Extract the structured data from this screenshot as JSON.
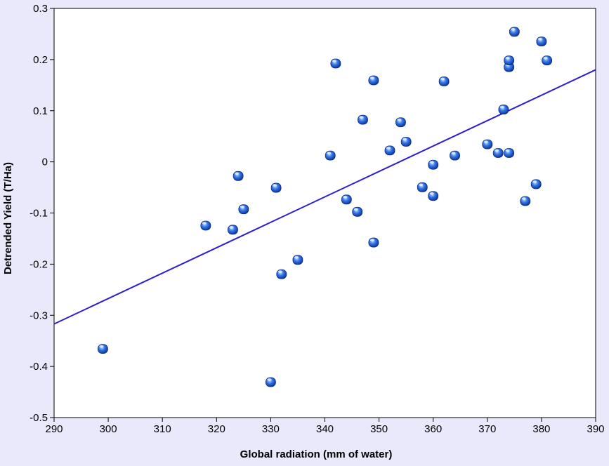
{
  "chart_data": {
    "type": "scatter",
    "title": "",
    "xlabel": "Global radiation (mm of water)",
    "ylabel": "Detrended Yield (T/Ha)",
    "xlim": [
      290,
      390
    ],
    "ylim": [
      -0.5,
      0.3
    ],
    "xticks": [
      290,
      300,
      310,
      320,
      330,
      340,
      350,
      360,
      370,
      380,
      390
    ],
    "yticks": [
      -0.5,
      -0.4,
      -0.3,
      -0.2,
      -0.1,
      0,
      0.1,
      0.2,
      0.3
    ],
    "xtick_labels": [
      "290",
      "300",
      "310",
      "320",
      "330",
      "340",
      "350",
      "360",
      "370",
      "380",
      "390"
    ],
    "ytick_labels": [
      "-0.5",
      "-0.4",
      "-0.3",
      "-0.2",
      "-0.1",
      "0",
      "0.1",
      "0.2",
      "0.3"
    ],
    "grid": false,
    "legend": "none",
    "colors": {
      "background": "#e9e9fb",
      "plot_area": "#ffffff",
      "marker": "#1f5fd6",
      "trendline": "#2b1fd0"
    },
    "series": [
      {
        "points": [
          [
            299,
            -0.365
          ],
          [
            318,
            -0.124
          ],
          [
            323,
            -0.132
          ],
          [
            324,
            -0.027
          ],
          [
            325,
            -0.092
          ],
          [
            330,
            -0.43
          ],
          [
            331,
            -0.05
          ],
          [
            332,
            -0.219
          ],
          [
            335,
            -0.191
          ],
          [
            341,
            0.013
          ],
          [
            342,
            0.193
          ],
          [
            344,
            -0.073
          ],
          [
            346,
            -0.097
          ],
          [
            347,
            0.083
          ],
          [
            349,
            0.16
          ],
          [
            349,
            -0.157
          ],
          [
            352,
            0.023
          ],
          [
            354,
            0.078
          ],
          [
            355,
            0.04
          ],
          [
            358,
            -0.049
          ],
          [
            360,
            -0.005
          ],
          [
            360,
            -0.066
          ],
          [
            362,
            0.158
          ],
          [
            364,
            0.013
          ],
          [
            370,
            0.035
          ],
          [
            372,
            0.018
          ],
          [
            373,
            0.103
          ],
          [
            374,
            0.018
          ],
          [
            374,
            0.186
          ],
          [
            374,
            0.199
          ],
          [
            375,
            0.255
          ],
          [
            377,
            -0.076
          ],
          [
            379,
            -0.043
          ],
          [
            380,
            0.236
          ],
          [
            381,
            0.199
          ]
        ]
      }
    ],
    "trendline": {
      "x": [
        290,
        390
      ],
      "y": [
        -0.317,
        0.18
      ]
    }
  }
}
